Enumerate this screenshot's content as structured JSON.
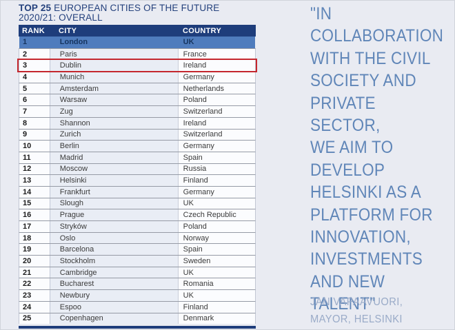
{
  "title": {
    "bold": "TOP 25",
    "rest": " EUROPEAN CITIES OF THE FUTURE",
    "line2": "2020/21: OVERALL"
  },
  "table": {
    "columns": [
      "RANK",
      "CITY",
      "COUNTRY"
    ],
    "highlight_rank": "1",
    "outlined_rank": "3",
    "rows": [
      {
        "rank": "1",
        "city": "London",
        "country": "UK"
      },
      {
        "rank": "2",
        "city": "Paris",
        "country": "France"
      },
      {
        "rank": "3",
        "city": "Dublin",
        "country": "Ireland"
      },
      {
        "rank": "4",
        "city": "Munich",
        "country": "Germany"
      },
      {
        "rank": "5",
        "city": "Amsterdam",
        "country": "Netherlands"
      },
      {
        "rank": "6",
        "city": "Warsaw",
        "country": "Poland"
      },
      {
        "rank": "7",
        "city": "Zug",
        "country": "Switzerland"
      },
      {
        "rank": "8",
        "city": "Shannon",
        "country": "Ireland"
      },
      {
        "rank": "9",
        "city": "Zurich",
        "country": "Switzerland"
      },
      {
        "rank": "10",
        "city": "Berlin",
        "country": "Germany"
      },
      {
        "rank": "11",
        "city": "Madrid",
        "country": "Spain"
      },
      {
        "rank": "12",
        "city": "Moscow",
        "country": "Russia"
      },
      {
        "rank": "13",
        "city": "Helsinki",
        "country": "Finland"
      },
      {
        "rank": "14",
        "city": "Frankfurt",
        "country": "Germany"
      },
      {
        "rank": "15",
        "city": "Slough",
        "country": "UK"
      },
      {
        "rank": "16",
        "city": "Prague",
        "country": "Czech Republic"
      },
      {
        "rank": "17",
        "city": "Stryków",
        "country": "Poland"
      },
      {
        "rank": "18",
        "city": "Oslo",
        "country": "Norway"
      },
      {
        "rank": "19",
        "city": "Barcelona",
        "country": "Spain"
      },
      {
        "rank": "20",
        "city": "Stockholm",
        "country": "Sweden"
      },
      {
        "rank": "21",
        "city": "Cambridge",
        "country": "UK"
      },
      {
        "rank": "22",
        "city": "Bucharest",
        "country": "Romania"
      },
      {
        "rank": "23",
        "city": "Newbury",
        "country": "UK"
      },
      {
        "rank": "24",
        "city": "Espoo",
        "country": "Finland"
      },
      {
        "rank": "25",
        "city": "Copenhagen",
        "country": "Denmark"
      }
    ]
  },
  "quote": {
    "text": "\"IN\nCOLLABORATION\nWITH THE CIVIL\nSOCIETY AND\nPRIVATE SECTOR,\nWE AIM TO\nDEVELOP\nHELSINKI AS A\nPLATFORM FOR\nINNOVATION,\nINVESTMENTS\nAND NEW\nTALENT\"",
    "attribution": "JAN VAPAAVUORI,\nMAYOR, HELSINKI"
  },
  "colors": {
    "header_navy": "#1e3d7b",
    "highlight_row_blue": "#4f7cbd",
    "highlight_row_text": "#16345f",
    "outline_red": "#c4262d",
    "title_navy": "#23407c",
    "quote_blue": "#6086b8",
    "attribution_blue": "#9aabc8",
    "page_background": "#e9ebf2",
    "city_column_tint": "#e9edf5"
  }
}
